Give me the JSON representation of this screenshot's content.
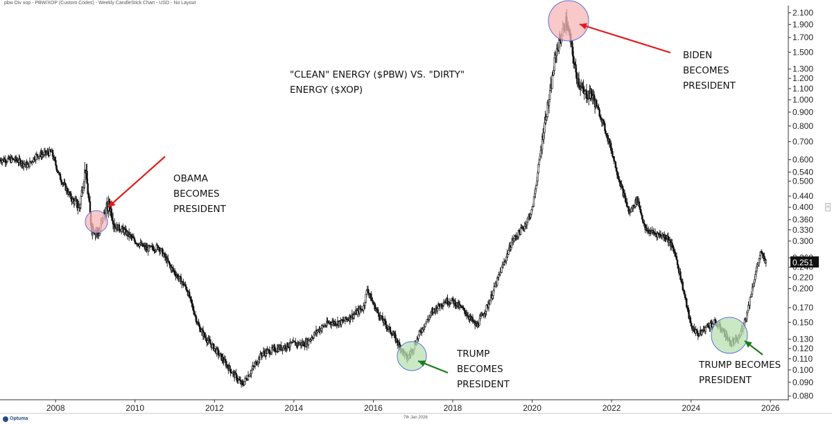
{
  "header": {
    "title": "pbw Div xop - PBW/XOP (Custom Codes) - Weekly CandleStick Chart - USD - No Layout"
  },
  "footer": {
    "logo_text": "Optuma",
    "date": "7th Jan 2026"
  },
  "annotations": {
    "title_lines": [
      "\"CLEAN\" ENERGY ($PBW) VS. \"DIRTY\"",
      "ENERGY ($XOP)"
    ],
    "obama": [
      "OBAMA",
      "BECOMES",
      "PRESIDENT"
    ],
    "trump1": [
      "TRUMP",
      "BECOMES",
      "PRESIDENT"
    ],
    "biden": [
      "BIDEN",
      "BECOMES",
      "PRESIDENT"
    ],
    "trump2": [
      "TRUMP BECOMES",
      "PRESIDENT"
    ]
  },
  "colors": {
    "candle": "#111111",
    "arrow_red": "#e21b1b",
    "arrow_green": "#1a7d1a",
    "circle_red_fill": "#f7b5b5",
    "circle_green_fill": "#b8e0b0",
    "circle_stroke": "#5b6ee0",
    "price_tag_bg": "#111111",
    "price_tag_text": "#ffffff"
  },
  "chart_data": {
    "type": "line",
    "scale": "log",
    "frequency": "weekly",
    "style": "candlestick",
    "series_symbol": "PBW/XOP",
    "xlim": [
      2006.6,
      2026.45
    ],
    "ylim": [
      0.078,
      2.13
    ],
    "x_ticks": [
      2008,
      2010,
      2012,
      2014,
      2016,
      2018,
      2020,
      2022,
      2024,
      2026
    ],
    "x_tick_labels": [
      "2008",
      "2010",
      "2012",
      "2014",
      "2016",
      "2018",
      "2020",
      "2022",
      "2024",
      "2026"
    ],
    "y_ticks": [
      2.1,
      1.9,
      1.7,
      1.5,
      1.3,
      1.2,
      1.1,
      1.0,
      0.9,
      0.8,
      0.7,
      0.6,
      0.54,
      0.5,
      0.44,
      0.4,
      0.36,
      0.33,
      0.3,
      0.26,
      0.24,
      0.22,
      0.2,
      0.17,
      0.15,
      0.13,
      0.12,
      0.11,
      0.1,
      0.09,
      0.08
    ],
    "y_tick_labels": [
      "2.100",
      "1.900",
      "1.700",
      "1.500",
      "1.300",
      "1.200",
      "1.100",
      "1.000",
      "0.900",
      "0.800",
      "0.700",
      "0.600",
      "0.540",
      "0.500",
      "0.440",
      "0.400",
      "0.360",
      "0.330",
      "0.300",
      "0.260",
      "0.240",
      "0.220",
      "0.200",
      "0.170",
      "0.150",
      "0.130",
      "0.120",
      "0.110",
      "0.100",
      "0.090",
      "0.080"
    ],
    "last_value": 0.251,
    "last_value_label": "0.251",
    "anchors": [
      [
        2006.6,
        0.6
      ],
      [
        2007.0,
        0.6
      ],
      [
        2007.3,
        0.57
      ],
      [
        2007.5,
        0.62
      ],
      [
        2007.9,
        0.64
      ],
      [
        2008.1,
        0.52
      ],
      [
        2008.4,
        0.43
      ],
      [
        2008.6,
        0.4
      ],
      [
        2008.75,
        0.56
      ],
      [
        2008.9,
        0.34
      ],
      [
        2009.1,
        0.32
      ],
      [
        2009.2,
        0.37
      ],
      [
        2009.35,
        0.41
      ],
      [
        2009.5,
        0.34
      ],
      [
        2009.7,
        0.33
      ],
      [
        2010.0,
        0.3
      ],
      [
        2010.3,
        0.28
      ],
      [
        2010.6,
        0.285
      ],
      [
        2010.9,
        0.24
      ],
      [
        2011.3,
        0.2
      ],
      [
        2011.6,
        0.145
      ],
      [
        2011.8,
        0.13
      ],
      [
        2012.1,
        0.115
      ],
      [
        2012.4,
        0.1
      ],
      [
        2012.7,
        0.088
      ],
      [
        2012.9,
        0.098
      ],
      [
        2013.2,
        0.115
      ],
      [
        2013.6,
        0.12
      ],
      [
        2014.0,
        0.125
      ],
      [
        2014.3,
        0.125
      ],
      [
        2014.6,
        0.14
      ],
      [
        2014.9,
        0.15
      ],
      [
        2015.2,
        0.15
      ],
      [
        2015.5,
        0.16
      ],
      [
        2015.75,
        0.17
      ],
      [
        2015.85,
        0.2
      ],
      [
        2016.0,
        0.175
      ],
      [
        2016.2,
        0.155
      ],
      [
        2016.5,
        0.135
      ],
      [
        2016.7,
        0.12
      ],
      [
        2016.85,
        0.11
      ],
      [
        2017.0,
        0.12
      ],
      [
        2017.2,
        0.14
      ],
      [
        2017.5,
        0.165
      ],
      [
        2017.8,
        0.18
      ],
      [
        2018.0,
        0.18
      ],
      [
        2018.3,
        0.165
      ],
      [
        2018.6,
        0.145
      ],
      [
        2018.9,
        0.175
      ],
      [
        2019.2,
        0.23
      ],
      [
        2019.5,
        0.3
      ],
      [
        2019.8,
        0.34
      ],
      [
        2020.0,
        0.39
      ],
      [
        2020.15,
        0.55
      ],
      [
        2020.3,
        0.8
      ],
      [
        2020.45,
        1.05
      ],
      [
        2020.6,
        1.5
      ],
      [
        2020.75,
        1.75
      ],
      [
        2020.85,
        1.95
      ],
      [
        2020.95,
        1.7
      ],
      [
        2021.1,
        1.25
      ],
      [
        2021.3,
        1.05
      ],
      [
        2021.5,
        1.05
      ],
      [
        2021.75,
        0.85
      ],
      [
        2022.0,
        0.65
      ],
      [
        2022.2,
        0.5
      ],
      [
        2022.45,
        0.38
      ],
      [
        2022.65,
        0.43
      ],
      [
        2022.85,
        0.33
      ],
      [
        2023.1,
        0.32
      ],
      [
        2023.4,
        0.31
      ],
      [
        2023.6,
        0.27
      ],
      [
        2023.8,
        0.2
      ],
      [
        2024.0,
        0.145
      ],
      [
        2024.2,
        0.135
      ],
      [
        2024.4,
        0.145
      ],
      [
        2024.6,
        0.15
      ],
      [
        2024.8,
        0.14
      ],
      [
        2025.0,
        0.125
      ],
      [
        2025.2,
        0.13
      ],
      [
        2025.4,
        0.16
      ],
      [
        2025.6,
        0.22
      ],
      [
        2025.75,
        0.27
      ],
      [
        2025.9,
        0.25
      ]
    ]
  }
}
